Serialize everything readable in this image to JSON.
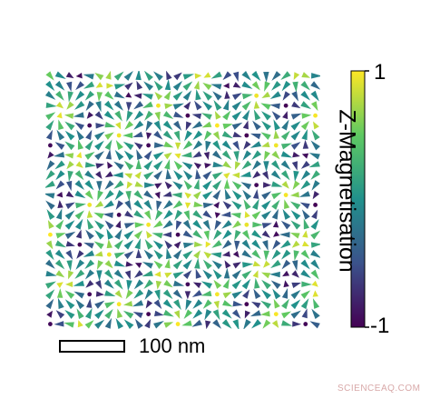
{
  "colorbar": {
    "label": "Z-Magnetisation",
    "max_label": "1",
    "min_label": "-1",
    "colormap": [
      "#440154",
      "#3b528b",
      "#21918c",
      "#5ec962",
      "#fde725"
    ]
  },
  "scalebar": {
    "label": "100 nm"
  },
  "watermark": "SCIENCEAQ.COM",
  "texture": {
    "name": "skyrmion-lattice-vector-field",
    "columns": 28,
    "rows": 26
  }
}
